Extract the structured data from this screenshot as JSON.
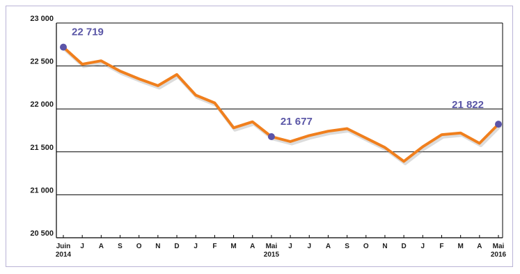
{
  "chart_data": {
    "type": "line",
    "title": "",
    "xlabel": "",
    "ylabel": "",
    "ylim": [
      20500,
      23000
    ],
    "yticks": [
      "23 000",
      "22 500",
      "22 000",
      "21 500",
      "21 000",
      "20 500"
    ],
    "ytick_values": [
      23000,
      22500,
      22000,
      21500,
      21000,
      20500
    ],
    "grid": true,
    "line_color": "#f07f1d",
    "marker_color": "#5b54a8",
    "label_color": "#5a56a6",
    "categories": [
      {
        "label": "Juin",
        "year": "2014"
      },
      {
        "label": "J",
        "year": ""
      },
      {
        "label": "A",
        "year": ""
      },
      {
        "label": "S",
        "year": ""
      },
      {
        "label": "O",
        "year": ""
      },
      {
        "label": "N",
        "year": ""
      },
      {
        "label": "D",
        "year": ""
      },
      {
        "label": "J",
        "year": ""
      },
      {
        "label": "F",
        "year": ""
      },
      {
        "label": "M",
        "year": ""
      },
      {
        "label": "A",
        "year": ""
      },
      {
        "label": "Mai",
        "year": "2015"
      },
      {
        "label": "J",
        "year": ""
      },
      {
        "label": "J",
        "year": ""
      },
      {
        "label": "A",
        "year": ""
      },
      {
        "label": "S",
        "year": ""
      },
      {
        "label": "O",
        "year": ""
      },
      {
        "label": "N",
        "year": ""
      },
      {
        "label": "D",
        "year": ""
      },
      {
        "label": "J",
        "year": ""
      },
      {
        "label": "F",
        "year": ""
      },
      {
        "label": "M",
        "year": ""
      },
      {
        "label": "A",
        "year": ""
      },
      {
        "label": "Mai",
        "year": "2016"
      }
    ],
    "series": [
      {
        "values": [
          22719,
          22520,
          22560,
          22440,
          22350,
          22270,
          22400,
          22160,
          22070,
          21780,
          21850,
          21677,
          21620,
          21690,
          21740,
          21770,
          21660,
          21550,
          21390,
          21560,
          21700,
          21720,
          21600,
          21822
        ]
      }
    ],
    "highlights": [
      {
        "index": 0,
        "label": "22 719"
      },
      {
        "index": 11,
        "label": "21 677"
      },
      {
        "index": 23,
        "label": "21 822"
      }
    ]
  }
}
